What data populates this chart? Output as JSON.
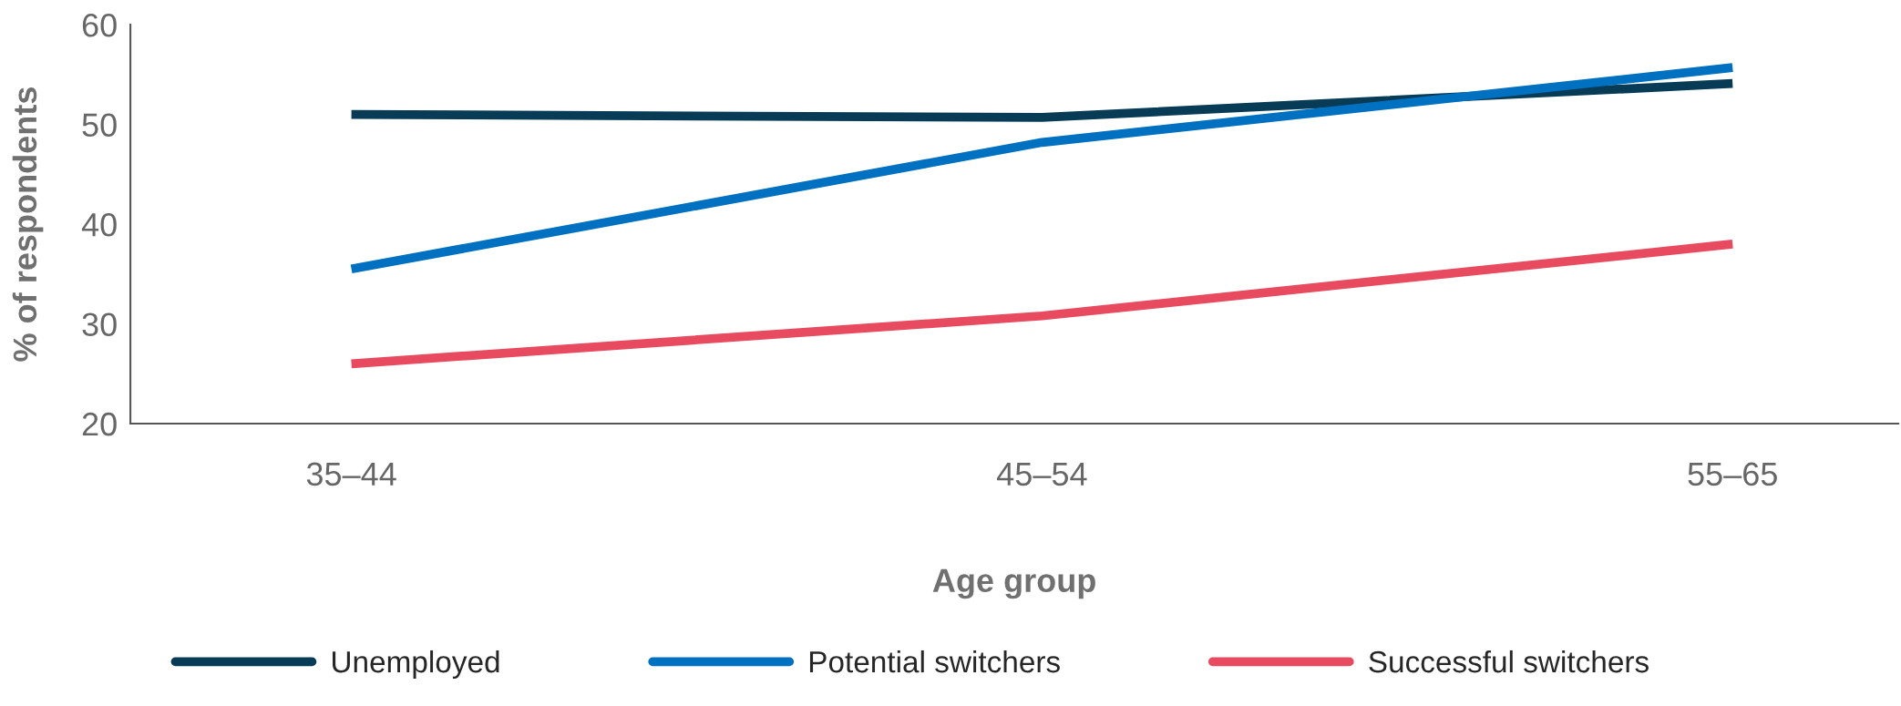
{
  "chart_data": {
    "type": "line",
    "xlabel": "Age group",
    "ylabel": "% of respondents",
    "categories": [
      "35–44",
      "45–54",
      "55–65"
    ],
    "series": [
      {
        "name": "Unemployed",
        "color": "#073b56",
        "values": [
          51,
          50.7,
          54.1
        ]
      },
      {
        "name": "Potential switchers",
        "color": "#0070c0",
        "values": [
          35.5,
          48.2,
          55.7
        ]
      },
      {
        "name": "Successful switchers",
        "color": "#e84a5f",
        "values": [
          26,
          30.8,
          38
        ]
      }
    ],
    "ylim": [
      20,
      60
    ],
    "yticks": [
      20,
      30,
      40,
      50,
      60
    ],
    "grid": false,
    "legend": "bottom",
    "marker": "none",
    "line_style": "solid"
  }
}
